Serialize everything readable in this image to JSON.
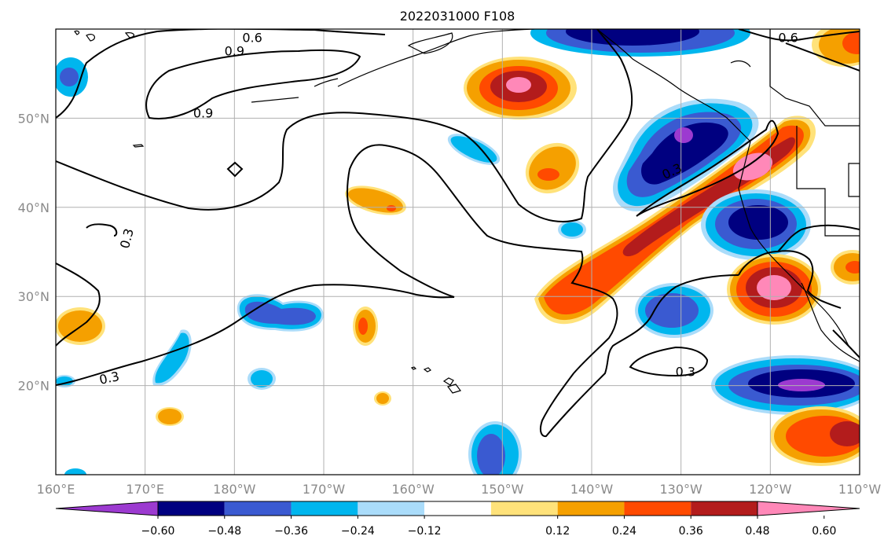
{
  "title": "2022031000 F108",
  "map": {
    "lon_range": [
      160,
      250
    ],
    "lat_range": [
      10,
      60
    ],
    "x_ticks": [
      {
        "lon": 160,
        "label": "160°E"
      },
      {
        "lon": 170,
        "label": "170°E"
      },
      {
        "lon": 180,
        "label": "180°W"
      },
      {
        "lon": 190,
        "label": "170°W"
      },
      {
        "lon": 200,
        "label": "160°W"
      },
      {
        "lon": 210,
        "label": "150°W"
      },
      {
        "lon": 220,
        "label": "140°W"
      },
      {
        "lon": 230,
        "label": "130°W"
      },
      {
        "lon": 240,
        "label": "120°W"
      },
      {
        "lon": 250,
        "label": "110°W"
      }
    ],
    "y_ticks": [
      {
        "lat": 20,
        "label": "20°N"
      },
      {
        "lat": 30,
        "label": "30°N"
      },
      {
        "lat": 40,
        "label": "40°N"
      },
      {
        "lat": 50,
        "label": "50°N"
      }
    ],
    "contour_labels": [
      {
        "text": "0.6",
        "lon": 182,
        "lat": 59
      },
      {
        "text": "0.9",
        "lon": 180,
        "lat": 57.5
      },
      {
        "text": "0.9",
        "lon": 176.5,
        "lat": 50.5
      },
      {
        "text": "0.3",
        "lon": 168,
        "lat": 36.5
      },
      {
        "text": "0.3",
        "lon": 166,
        "lat": 20.8
      },
      {
        "text": "0.3",
        "lon": 230.5,
        "lat": 21.5
      },
      {
        "text": "0.3",
        "lon": 229,
        "lat": 44
      },
      {
        "text": "0.6",
        "lon": 242,
        "lat": 59
      }
    ]
  },
  "colorbar": {
    "colors": [
      "#9c3ad0",
      "#000080",
      "#3a5ad1",
      "#00b6ee",
      "#aadcfa",
      "#ffffff",
      "#ffe27a",
      "#f5a000",
      "#ff4a00",
      "#b31c1c",
      "#ff88b8"
    ],
    "ticks": [
      "−0.60",
      "−0.48",
      "−0.36",
      "−0.24",
      "−0.12",
      "0.12",
      "0.24",
      "0.36",
      "0.48",
      "0.60"
    ]
  }
}
